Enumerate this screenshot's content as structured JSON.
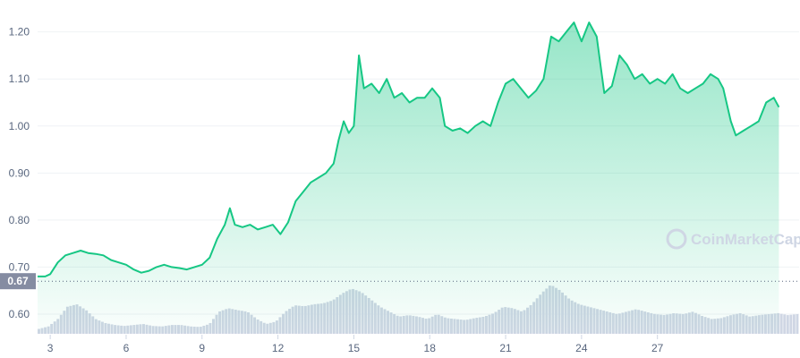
{
  "watermark": {
    "text": "CoinMarketCap",
    "icon": "coinmarketcap-logo-icon"
  },
  "colors": {
    "line": "#16c784",
    "fill_top": "#16c784",
    "volume": "#cfd6e4",
    "grid": "#eff2f5",
    "ref_line": "#58667e",
    "ref_badge": "#858ca2"
  },
  "chart_data": {
    "type": "area",
    "y_ticks": [
      "0.60",
      "0.70",
      "0.80",
      "0.90",
      "1.00",
      "1.10",
      "1.20"
    ],
    "y_tick_values": [
      0.6,
      0.7,
      0.8,
      0.9,
      1.0,
      1.1,
      1.2
    ],
    "ylim": [
      0.56,
      1.245
    ],
    "x_ticks": [
      "3",
      "6",
      "9",
      "12",
      "15",
      "18",
      "21",
      "24",
      "27"
    ],
    "x_tick_positions": [
      3,
      6,
      9,
      12,
      15,
      18,
      21,
      24,
      27
    ],
    "xlim": [
      2.5,
      32.6
    ],
    "reference_line": {
      "value": 0.67,
      "label": "0.67"
    },
    "grid": true,
    "series": [
      {
        "values": [
          [
            2.5,
            0.68
          ],
          [
            2.8,
            0.68
          ],
          [
            3.0,
            0.685
          ],
          [
            3.3,
            0.71
          ],
          [
            3.6,
            0.725
          ],
          [
            3.9,
            0.73
          ],
          [
            4.2,
            0.735
          ],
          [
            4.5,
            0.73
          ],
          [
            4.8,
            0.728
          ],
          [
            5.1,
            0.725
          ],
          [
            5.4,
            0.715
          ],
          [
            5.7,
            0.71
          ],
          [
            6.0,
            0.705
          ],
          [
            6.3,
            0.695
          ],
          [
            6.6,
            0.688
          ],
          [
            6.9,
            0.692
          ],
          [
            7.2,
            0.7
          ],
          [
            7.5,
            0.705
          ],
          [
            7.8,
            0.7
          ],
          [
            8.1,
            0.698
          ],
          [
            8.4,
            0.695
          ],
          [
            8.7,
            0.7
          ],
          [
            9.0,
            0.705
          ],
          [
            9.3,
            0.72
          ],
          [
            9.6,
            0.76
          ],
          [
            9.9,
            0.79
          ],
          [
            10.1,
            0.825
          ],
          [
            10.3,
            0.79
          ],
          [
            10.6,
            0.785
          ],
          [
            10.9,
            0.79
          ],
          [
            11.2,
            0.78
          ],
          [
            11.5,
            0.785
          ],
          [
            11.8,
            0.79
          ],
          [
            12.1,
            0.77
          ],
          [
            12.4,
            0.795
          ],
          [
            12.7,
            0.84
          ],
          [
            13.0,
            0.86
          ],
          [
            13.3,
            0.88
          ],
          [
            13.6,
            0.89
          ],
          [
            13.9,
            0.9
          ],
          [
            14.2,
            0.92
          ],
          [
            14.4,
            0.97
          ],
          [
            14.6,
            1.01
          ],
          [
            14.8,
            0.985
          ],
          [
            15.0,
            1.0
          ],
          [
            15.2,
            1.15
          ],
          [
            15.4,
            1.08
          ],
          [
            15.7,
            1.09
          ],
          [
            16.0,
            1.07
          ],
          [
            16.3,
            1.1
          ],
          [
            16.6,
            1.06
          ],
          [
            16.9,
            1.07
          ],
          [
            17.2,
            1.05
          ],
          [
            17.5,
            1.06
          ],
          [
            17.8,
            1.06
          ],
          [
            18.1,
            1.08
          ],
          [
            18.4,
            1.06
          ],
          [
            18.6,
            1.0
          ],
          [
            18.9,
            0.99
          ],
          [
            19.2,
            0.995
          ],
          [
            19.5,
            0.985
          ],
          [
            19.8,
            1.0
          ],
          [
            20.1,
            1.01
          ],
          [
            20.4,
            1.0
          ],
          [
            20.7,
            1.05
          ],
          [
            21.0,
            1.09
          ],
          [
            21.3,
            1.1
          ],
          [
            21.6,
            1.08
          ],
          [
            21.9,
            1.06
          ],
          [
            22.2,
            1.075
          ],
          [
            22.5,
            1.1
          ],
          [
            22.8,
            1.19
          ],
          [
            23.1,
            1.18
          ],
          [
            23.4,
            1.2
          ],
          [
            23.7,
            1.22
          ],
          [
            24.0,
            1.18
          ],
          [
            24.3,
            1.22
          ],
          [
            24.6,
            1.19
          ],
          [
            24.9,
            1.07
          ],
          [
            25.2,
            1.085
          ],
          [
            25.5,
            1.15
          ],
          [
            25.8,
            1.13
          ],
          [
            26.1,
            1.1
          ],
          [
            26.4,
            1.11
          ],
          [
            26.7,
            1.09
          ],
          [
            27.0,
            1.1
          ],
          [
            27.3,
            1.09
          ],
          [
            27.6,
            1.11
          ],
          [
            27.9,
            1.08
          ],
          [
            28.2,
            1.07
          ],
          [
            28.5,
            1.08
          ],
          [
            28.8,
            1.09
          ],
          [
            29.1,
            1.11
          ],
          [
            29.4,
            1.1
          ],
          [
            29.6,
            1.08
          ],
          [
            29.9,
            1.01
          ],
          [
            30.1,
            0.98
          ],
          [
            30.4,
            0.99
          ],
          [
            30.7,
            1.0
          ],
          [
            31.0,
            1.01
          ],
          [
            31.3,
            1.05
          ],
          [
            31.6,
            1.06
          ],
          [
            31.8,
            1.04
          ]
        ]
      }
    ],
    "volume": {
      "relative_heights": [
        0.1,
        0.15,
        0.3,
        0.55,
        0.6,
        0.48,
        0.3,
        0.22,
        0.18,
        0.16,
        0.18,
        0.2,
        0.16,
        0.15,
        0.18,
        0.18,
        0.15,
        0.14,
        0.2,
        0.45,
        0.52,
        0.48,
        0.45,
        0.3,
        0.2,
        0.25,
        0.45,
        0.58,
        0.56,
        0.6,
        0.62,
        0.68,
        0.82,
        0.92,
        0.85,
        0.7,
        0.55,
        0.45,
        0.35,
        0.38,
        0.35,
        0.3,
        0.4,
        0.32,
        0.3,
        0.28,
        0.32,
        0.35,
        0.42,
        0.55,
        0.52,
        0.45,
        0.6,
        0.82,
        1.0,
        0.88,
        0.7,
        0.6,
        0.55,
        0.5,
        0.45,
        0.4,
        0.45,
        0.5,
        0.45,
        0.4,
        0.38,
        0.42,
        0.4,
        0.45,
        0.36,
        0.3,
        0.32,
        0.38,
        0.42,
        0.35,
        0.38,
        0.4,
        0.42,
        0.38,
        0.4
      ]
    }
  }
}
